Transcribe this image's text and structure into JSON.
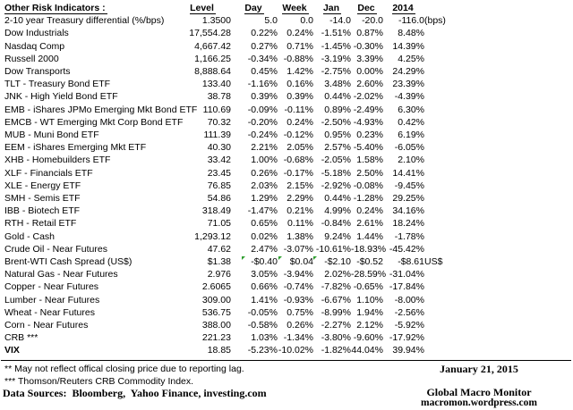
{
  "table": {
    "title": "Other Risk Indicators :",
    "columns": [
      "Level",
      "Day",
      "Week",
      "Jan",
      "Dec",
      "2014"
    ],
    "rows": [
      {
        "name": "2-10 year Treasury differential (%/bps)",
        "level": "1.3500",
        "day": "5.0",
        "week": "0.0",
        "jan": "-14.0",
        "dec": "-20.0",
        "y2014": "-116.0",
        "note": "(bps)"
      },
      {
        "name": "Dow Industrials",
        "level": "17,554.28",
        "day": "0.22%",
        "week": "0.24%",
        "jan": "-1.51%",
        "dec": "0.87%",
        "y2014": "8.48%",
        "note": ""
      },
      {
        "name": "Nasdaq Comp",
        "level": "4,667.42",
        "day": "0.27%",
        "week": "0.71%",
        "jan": "-1.45%",
        "dec": "-0.30%",
        "y2014": "14.39%",
        "note": ""
      },
      {
        "name": "Russell 2000",
        "level": "1,166.25",
        "day": "-0.34%",
        "week": "-0.88%",
        "jan": "-3.19%",
        "dec": "3.39%",
        "y2014": "4.25%",
        "note": ""
      },
      {
        "name": "Dow Transports",
        "level": "8,888.64",
        "day": "0.45%",
        "week": "1.42%",
        "jan": "-2.75%",
        "dec": "0.00%",
        "y2014": "24.29%",
        "note": ""
      },
      {
        "name": "TLT - Treasury Bond ETF",
        "level": "133.40",
        "day": "-1.16%",
        "week": "0.16%",
        "jan": "3.48%",
        "dec": "2.60%",
        "y2014": "23.39%",
        "note": ""
      },
      {
        "name": "JNK - High Yield Bond ETF",
        "level": "38.78",
        "day": "0.39%",
        "week": "0.39%",
        "jan": "0.44%",
        "dec": "-2.02%",
        "y2014": "-4.39%",
        "note": ""
      },
      {
        "name": "EMB - iShares JPMo Emerging Mkt Bond ETF",
        "level": "110.69",
        "day": "-0.09%",
        "week": "-0.11%",
        "jan": "0.89%",
        "dec": "-2.49%",
        "y2014": "6.30%",
        "note": ""
      },
      {
        "name": "EMCB - WT Emerging Mkt Corp Bond ETF",
        "level": "70.32",
        "day": "-0.20%",
        "week": "0.24%",
        "jan": "-2.50%",
        "dec": "-4.93%",
        "y2014": "0.42%",
        "note": ""
      },
      {
        "name": "MUB - Muni Bond ETF",
        "level": "111.39",
        "day": "-0.24%",
        "week": "-0.12%",
        "jan": "0.95%",
        "dec": "0.23%",
        "y2014": "6.19%",
        "note": ""
      },
      {
        "name": "EEM - iShares Emerging Mkt ETF",
        "level": "40.30",
        "day": "2.21%",
        "week": "2.05%",
        "jan": "2.57%",
        "dec": "-5.40%",
        "y2014": "-6.05%",
        "note": ""
      },
      {
        "name": "XHB - Homebuilders ETF",
        "level": "33.42",
        "day": "1.00%",
        "week": "-0.68%",
        "jan": "-2.05%",
        "dec": "1.58%",
        "y2014": "2.10%",
        "note": ""
      },
      {
        "name": "XLF - Financials ETF",
        "level": "23.45",
        "day": "0.26%",
        "week": "-0.17%",
        "jan": "-5.18%",
        "dec": "2.50%",
        "y2014": "14.41%",
        "note": ""
      },
      {
        "name": "XLE - Energy ETF",
        "level": "76.85",
        "day": "2.03%",
        "week": "2.15%",
        "jan": "-2.92%",
        "dec": "-0.08%",
        "y2014": "-9.45%",
        "note": ""
      },
      {
        "name": "SMH - Semis ETF",
        "level": "54.86",
        "day": "1.29%",
        "week": "2.29%",
        "jan": "0.44%",
        "dec": "-1.28%",
        "y2014": "29.25%",
        "note": ""
      },
      {
        "name": "IBB - Biotech ETF",
        "level": "318.49",
        "day": "-1.47%",
        "week": "0.21%",
        "jan": "4.99%",
        "dec": "0.24%",
        "y2014": "34.16%",
        "note": ""
      },
      {
        "name": "RTH - Retail ETF",
        "level": "71.05",
        "day": "0.65%",
        "week": "0.11%",
        "jan": "-0.84%",
        "dec": "2.61%",
        "y2014": "18.24%",
        "note": ""
      },
      {
        "name": "Gold - Cash",
        "level": "1,293.12",
        "day": "0.02%",
        "week": "1.38%",
        "jan": "9.24%",
        "dec": "1.44%",
        "y2014": "-1.78%",
        "note": ""
      },
      {
        "name": "Crude Oil - Near Futures",
        "level": "47.62",
        "day": "2.47%",
        "week": "-3.07%",
        "jan": "-10.61%",
        "dec": "-18.93%",
        "y2014": "-45.42%",
        "note": ""
      },
      {
        "name": "Brent-WTI Cash Spread (US$)",
        "level": "$1.38",
        "day": "-$0.40",
        "week": "$0.04",
        "jan": "-$2.10",
        "dec": "-$0.52",
        "y2014": "-$8.61",
        "note": "US$",
        "markers": true
      },
      {
        "name": "Natural Gas - Near Futures",
        "level": "2.976",
        "day": "3.05%",
        "week": "-3.94%",
        "jan": "2.02%",
        "dec": "-28.59%",
        "y2014": "-31.04%",
        "note": ""
      },
      {
        "name": "Copper - Near Futures",
        "level": "2.6065",
        "day": "0.66%",
        "week": "-0.74%",
        "jan": "-7.82%",
        "dec": "-0.65%",
        "y2014": "-17.84%",
        "note": ""
      },
      {
        "name": "Lumber - Near Futures",
        "level": "309.00",
        "day": "1.41%",
        "week": "-0.93%",
        "jan": "-6.67%",
        "dec": "1.10%",
        "y2014": "-8.00%",
        "note": ""
      },
      {
        "name": "Wheat - Near Futures",
        "level": "536.75",
        "day": "-0.05%",
        "week": "0.75%",
        "jan": "-8.99%",
        "dec": "1.94%",
        "y2014": "-2.56%",
        "note": ""
      },
      {
        "name": "Corn - Near Futures",
        "level": "388.00",
        "day": "-0.58%",
        "week": "0.26%",
        "jan": "-2.27%",
        "dec": "2.12%",
        "y2014": "-5.92%",
        "note": ""
      },
      {
        "name": "CRB ***",
        "level": "221.23",
        "day": "1.03%",
        "week": "-1.34%",
        "jan": "-3.80%",
        "dec": "-9.60%",
        "y2014": "-17.92%",
        "note": ""
      },
      {
        "name": "VIX",
        "level": "18.85",
        "day": "-5.23%",
        "week": "-10.02%",
        "jan": "-1.82%",
        "dec": "44.04%",
        "y2014": "39.94%",
        "note": "",
        "bold": true
      }
    ]
  },
  "footer": {
    "footnote_2star": "** May not reflect offical closing price due to reporting lag.",
    "footnote_3star": "*** Thomson/Reuters CRB Commodity Index.",
    "data_sources": "Data Sources:  Bloomberg,  Yahoo Finance, investing.com",
    "date": "January 21, 2015",
    "brand": "Global Macro Monitor",
    "website": "macromon.wordpress.com"
  },
  "colors": {
    "background": "#ffffff",
    "text": "#000000",
    "cell_comment_marker_green": "#2e9e2e"
  }
}
